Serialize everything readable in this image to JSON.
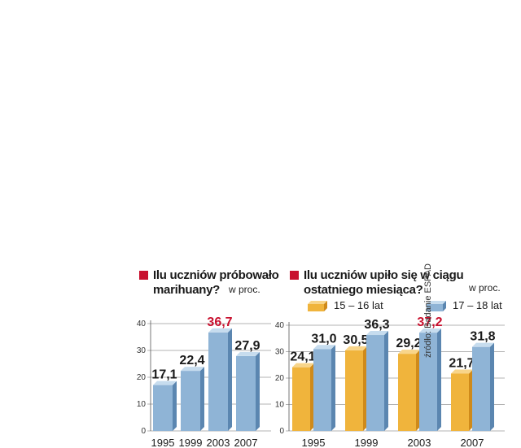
{
  "source": "źródło: Badanie ESPAD",
  "colors": {
    "accent": "#c8102e",
    "blue_front": "#8fb4d6",
    "blue_side": "#5b86b0",
    "blue_top": "#c6dcee",
    "orange_front": "#f0b43c",
    "orange_side": "#cf8a1a",
    "orange_top": "#f8d58a"
  },
  "chart_data": [
    {
      "type": "bar",
      "title": "Ilu uczniów próbowało marihuany?",
      "unit": "w proc.",
      "categories": [
        "1995",
        "1999",
        "2003",
        "2007"
      ],
      "values": [
        17.1,
        22.4,
        36.7,
        27.9
      ],
      "value_labels": [
        "17,1",
        "22,4",
        "36,7",
        "27,9"
      ],
      "highlight_index": 2,
      "ylim": [
        0,
        40
      ],
      "yticks": [
        "0",
        "10",
        "20",
        "30",
        "40"
      ],
      "grid": true
    },
    {
      "type": "bar",
      "title": "Ilu uczniów upiło się w ciągu ostatniego miesiąca?",
      "unit": "w proc.",
      "categories": [
        "1995",
        "1999",
        "2003",
        "2007"
      ],
      "series": [
        {
          "name": "15 – 16 lat",
          "values": [
            24.1,
            30.5,
            29.2,
            21.7
          ],
          "value_labels": [
            "24,1",
            "30,5",
            "29,2",
            "21,7"
          ]
        },
        {
          "name": "17 – 18 lat",
          "values": [
            31.0,
            36.3,
            37.2,
            31.8
          ],
          "value_labels": [
            "31,0",
            "36,3",
            "37,2",
            "31,8"
          ]
        }
      ],
      "highlight": {
        "series": 1,
        "index": 2
      },
      "ylim": [
        0,
        40
      ],
      "yticks": [
        "0",
        "10",
        "20",
        "30",
        "40"
      ],
      "grid": true
    }
  ]
}
